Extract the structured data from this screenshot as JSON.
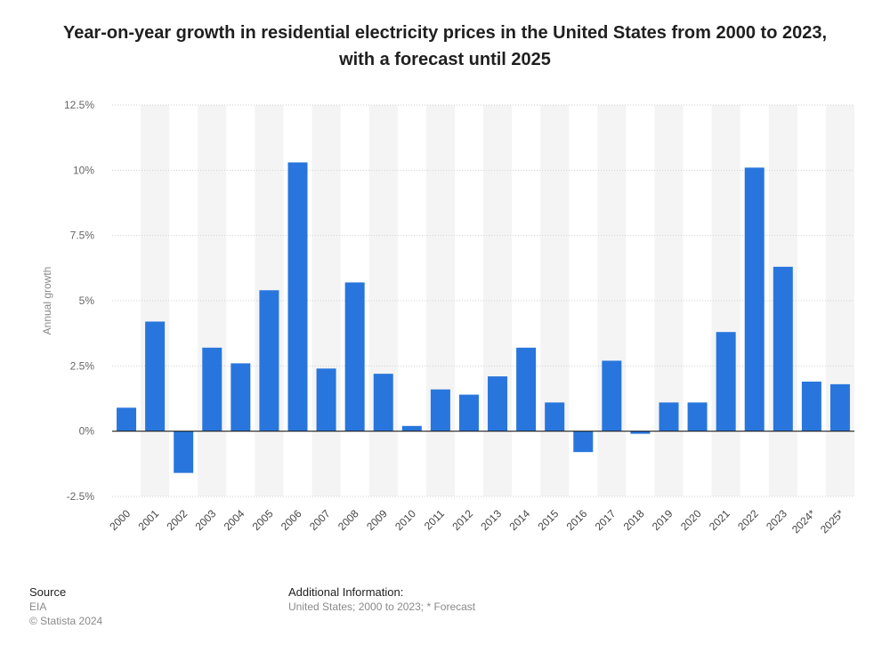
{
  "chart_data": {
    "type": "bar",
    "title": "Year-on-year growth in residential electricity prices in the United States from 2000 to 2023, with a forecast until 2025",
    "xlabel": "",
    "ylabel": "Annual growth",
    "categories": [
      "2000",
      "2001",
      "2002",
      "2003",
      "2004",
      "2005",
      "2006",
      "2007",
      "2008",
      "2009",
      "2010",
      "2011",
      "2012",
      "2013",
      "2014",
      "2015",
      "2016",
      "2017",
      "2018",
      "2019",
      "2020",
      "2021",
      "2022",
      "2023",
      "2024*",
      "2025*"
    ],
    "values": [
      0.9,
      4.2,
      -1.6,
      3.2,
      2.6,
      5.4,
      10.3,
      2.4,
      5.7,
      2.2,
      0.2,
      1.6,
      1.4,
      2.1,
      3.2,
      1.1,
      -0.8,
      2.7,
      -0.1,
      1.1,
      1.1,
      3.8,
      10.1,
      6.3,
      1.9,
      1.8
    ],
    "ylim": [
      -2.5,
      12.5
    ],
    "yticks": [
      {
        "value": 12.5,
        "label": "12.5%"
      },
      {
        "value": 10,
        "label": "10%"
      },
      {
        "value": 7.5,
        "label": "7.5%"
      },
      {
        "value": 5,
        "label": "5%"
      },
      {
        "value": 2.5,
        "label": "2.5%"
      },
      {
        "value": 0,
        "label": "0%"
      },
      {
        "value": -2.5,
        "label": "-2.5%"
      }
    ],
    "grid": true,
    "bar_color": "#2876dd",
    "band_color": "#f4f4f4",
    "grid_color": "#cfcfcf",
    "zero_line_color": "#1f1f1f"
  },
  "footer": {
    "source_label": "Source",
    "source_value": "EIA",
    "copyright": "© Statista 2024",
    "additional_label": "Additional Information:",
    "additional_value": "United States; 2000 to 2023; * Forecast"
  }
}
